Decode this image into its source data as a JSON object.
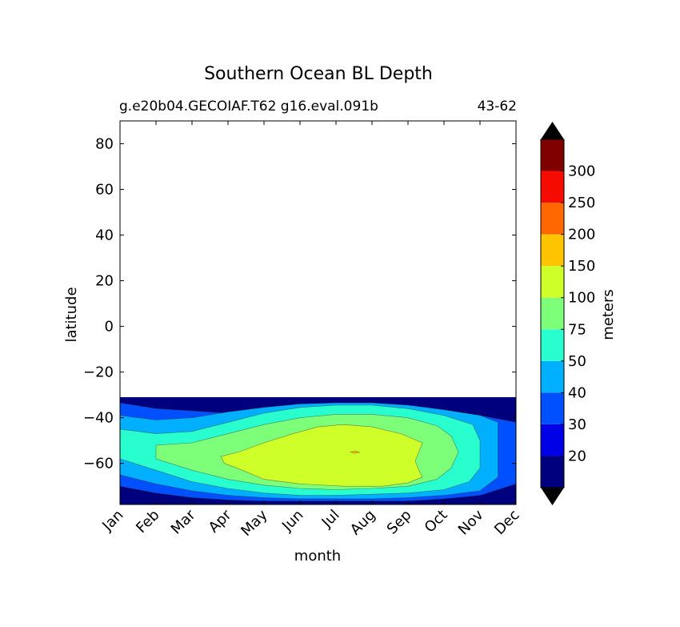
{
  "chart_data": {
    "type": "contour",
    "title": "Southern Ocean BL Depth",
    "subtitle_left": "g.e20b04.GECOIAF.T62 g16.eval.091b",
    "subtitle_right": "43-62",
    "xlabel": "month",
    "ylabel": "latitude",
    "x_categories": [
      "Jan",
      "Feb",
      "Mar",
      "Apr",
      "May",
      "Jun",
      "Jul",
      "Aug",
      "Sep",
      "Oct",
      "Nov",
      "Dec"
    ],
    "yticks": [
      80,
      60,
      40,
      20,
      0,
      -20,
      -40,
      -60
    ],
    "ylim": [
      -78,
      90
    ],
    "data_lat_range": [
      -78,
      -31
    ],
    "colorbar": {
      "label": "meters",
      "levels": [
        20,
        30,
        40,
        50,
        75,
        100,
        150,
        200,
        250,
        300
      ],
      "tick_labels": [
        "20",
        "30",
        "40",
        "50",
        "75",
        "100",
        "150",
        "200",
        "250",
        "300"
      ],
      "colors": [
        "#00007f",
        "#0000e6",
        "#0050ff",
        "#00b0ff",
        "#29ffce",
        "#7dff7a",
        "#ceff29",
        "#ffc400",
        "#ff6800",
        "#f50b00",
        "#800000"
      ],
      "extend": "both"
    },
    "regions": [
      {
        "level": "30-40",
        "start": [
          1,
          -33.5
        ],
        "points": [
          [
            1,
            -33.5
          ],
          [
            2,
            -36
          ],
          [
            3,
            -37
          ],
          [
            4,
            -38
          ],
          [
            5,
            -37.5
          ],
          [
            6,
            -37
          ],
          [
            7,
            -36.5
          ],
          [
            8,
            -36.5
          ],
          [
            9,
            -37
          ],
          [
            10,
            -38
          ],
          [
            11,
            -39
          ],
          [
            12,
            -42
          ],
          [
            12,
            -69
          ],
          [
            11,
            -74
          ],
          [
            10,
            -75.5
          ],
          [
            9,
            -76.5
          ],
          [
            8,
            -76.5
          ],
          [
            7,
            -76.5
          ],
          [
            6,
            -76.5
          ],
          [
            5,
            -76.5
          ],
          [
            4,
            -76
          ],
          [
            3,
            -75
          ],
          [
            2,
            -73
          ],
          [
            1,
            -70
          ]
        ]
      },
      {
        "level": "40-50",
        "start": [
          1,
          -39
        ],
        "points": [
          [
            1,
            -39
          ],
          [
            2,
            -41
          ],
          [
            3,
            -40
          ],
          [
            4,
            -37.5
          ],
          [
            5,
            -35.5
          ],
          [
            6,
            -34
          ],
          [
            7,
            -33.5
          ],
          [
            8,
            -33.5
          ],
          [
            9,
            -34.5
          ],
          [
            10,
            -36.5
          ],
          [
            11,
            -39
          ],
          [
            11.5,
            -42
          ],
          [
            11.5,
            -66
          ],
          [
            11,
            -72
          ],
          [
            10,
            -74
          ],
          [
            9,
            -75
          ],
          [
            8,
            -75.5
          ],
          [
            7,
            -75.5
          ],
          [
            6,
            -75.5
          ],
          [
            5,
            -75
          ],
          [
            4,
            -74
          ],
          [
            3,
            -72
          ],
          [
            2,
            -69
          ],
          [
            1,
            -65
          ]
        ]
      },
      {
        "level": "50-75",
        "start": [
          1,
          -45
        ],
        "points": [
          [
            1,
            -45
          ],
          [
            2,
            -47
          ],
          [
            3,
            -46
          ],
          [
            4,
            -42
          ],
          [
            5,
            -38
          ],
          [
            6,
            -35.5
          ],
          [
            7,
            -34.5
          ],
          [
            8,
            -34.5
          ],
          [
            9,
            -36
          ],
          [
            10,
            -39
          ],
          [
            10.8,
            -43
          ],
          [
            11,
            -50
          ],
          [
            11,
            -62
          ],
          [
            10.7,
            -68
          ],
          [
            10,
            -71.5
          ],
          [
            9,
            -73
          ],
          [
            8,
            -73.5
          ],
          [
            7,
            -74
          ],
          [
            6,
            -74
          ],
          [
            5,
            -73
          ],
          [
            4,
            -71
          ],
          [
            3,
            -68
          ],
          [
            2,
            -63
          ],
          [
            1,
            -58
          ]
        ]
      },
      {
        "level": "75-100",
        "start": [
          2,
          -52
        ],
        "points": [
          [
            2,
            -52
          ],
          [
            3,
            -51
          ],
          [
            4,
            -47
          ],
          [
            5,
            -43
          ],
          [
            6,
            -40
          ],
          [
            7,
            -38.5
          ],
          [
            8,
            -38.5
          ],
          [
            9,
            -40
          ],
          [
            9.8,
            -43.5
          ],
          [
            10.2,
            -48
          ],
          [
            10.4,
            -55
          ],
          [
            10.2,
            -62
          ],
          [
            9.8,
            -67
          ],
          [
            9,
            -70
          ],
          [
            8,
            -71
          ],
          [
            7,
            -71.5
          ],
          [
            6,
            -71
          ],
          [
            5,
            -69.5
          ],
          [
            4,
            -67
          ],
          [
            3,
            -63
          ],
          [
            2,
            -58
          ]
        ]
      },
      {
        "level": "100-150",
        "start": [
          3.8,
          -57
        ],
        "points": [
          [
            3.8,
            -57
          ],
          [
            4.3,
            -55
          ],
          [
            5,
            -51
          ],
          [
            5.8,
            -47
          ],
          [
            6.5,
            -44
          ],
          [
            7.2,
            -43
          ],
          [
            8,
            -44
          ],
          [
            8.8,
            -47
          ],
          [
            9.4,
            -51
          ],
          [
            9.3,
            -55
          ],
          [
            9.2,
            -59
          ],
          [
            9.3,
            -63
          ],
          [
            9.4,
            -66
          ],
          [
            9,
            -68.5
          ],
          [
            8.3,
            -70
          ],
          [
            7.2,
            -70
          ],
          [
            6,
            -69
          ],
          [
            5,
            -67
          ],
          [
            4.4,
            -63
          ],
          [
            3.9,
            -60
          ]
        ]
      },
      {
        "level": "150-200",
        "start": [
          7.4,
          -55
        ],
        "points": [
          [
            7.4,
            -55
          ],
          [
            7.55,
            -54.6
          ],
          [
            7.65,
            -55.2
          ],
          [
            7.5,
            -55.6
          ]
        ]
      }
    ]
  }
}
